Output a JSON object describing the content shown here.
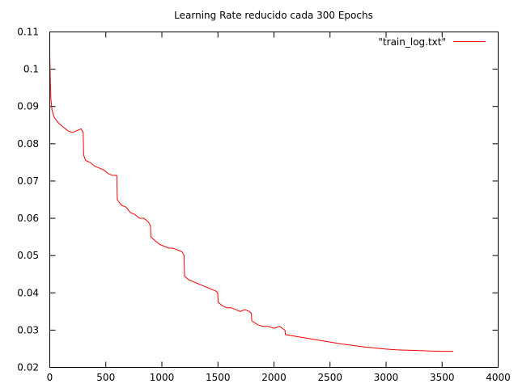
{
  "chart_data": {
    "type": "line",
    "title": "Learning Rate reducido cada 300 Epochs",
    "xlabel": "",
    "ylabel": "",
    "xlim": [
      0,
      4000
    ],
    "ylim": [
      0.02,
      0.11
    ],
    "xticks": [
      "0",
      "500",
      "1000",
      "1500",
      "2000",
      "2500",
      "3000",
      "3500",
      "4000"
    ],
    "yticks": [
      "0.02",
      "0.03",
      "0.04",
      "0.05",
      "0.06",
      "0.07",
      "0.08",
      "0.09",
      "0.1",
      "0.11"
    ],
    "grid": false,
    "legend_position": "top-right",
    "series": [
      {
        "name": "\"train_log.txt\"",
        "color": "#ff0000",
        "x": [
          0,
          5,
          10,
          20,
          40,
          80,
          120,
          160,
          200,
          240,
          280,
          298,
          302,
          320,
          360,
          400,
          440,
          480,
          520,
          560,
          598,
          602,
          640,
          680,
          720,
          760,
          800,
          840,
          880,
          898,
          902,
          940,
          980,
          1020,
          1060,
          1100,
          1140,
          1180,
          1198,
          1202,
          1240,
          1280,
          1320,
          1360,
          1400,
          1440,
          1480,
          1498,
          1502,
          1540,
          1580,
          1620,
          1660,
          1700,
          1740,
          1780,
          1798,
          1802,
          1850,
          1900,
          1950,
          2000,
          2050,
          2098,
          2102,
          2200,
          2300,
          2400,
          2500,
          2600,
          2700,
          2800,
          2900,
          3000,
          3100,
          3200,
          3300,
          3400,
          3500,
          3600
        ],
        "y": [
          0.104,
          0.097,
          0.092,
          0.089,
          0.087,
          0.0855,
          0.0845,
          0.0835,
          0.083,
          0.0835,
          0.084,
          0.083,
          0.077,
          0.0755,
          0.075,
          0.074,
          0.0735,
          0.073,
          0.072,
          0.0715,
          0.0715,
          0.065,
          0.0635,
          0.063,
          0.0615,
          0.061,
          0.06,
          0.06,
          0.059,
          0.058,
          0.055,
          0.054,
          0.053,
          0.0525,
          0.052,
          0.052,
          0.0515,
          0.051,
          0.05,
          0.0445,
          0.0435,
          0.043,
          0.0425,
          0.042,
          0.0415,
          0.041,
          0.0405,
          0.04,
          0.0375,
          0.0365,
          0.036,
          0.036,
          0.0355,
          0.035,
          0.0355,
          0.035,
          0.0345,
          0.0325,
          0.0315,
          0.031,
          0.031,
          0.0305,
          0.031,
          0.03,
          0.0288,
          0.0283,
          0.0278,
          0.0273,
          0.0268,
          0.0263,
          0.0259,
          0.0255,
          0.0252,
          0.0249,
          0.0247,
          0.0246,
          0.0245,
          0.0244,
          0.0243,
          0.0243
        ]
      }
    ]
  }
}
